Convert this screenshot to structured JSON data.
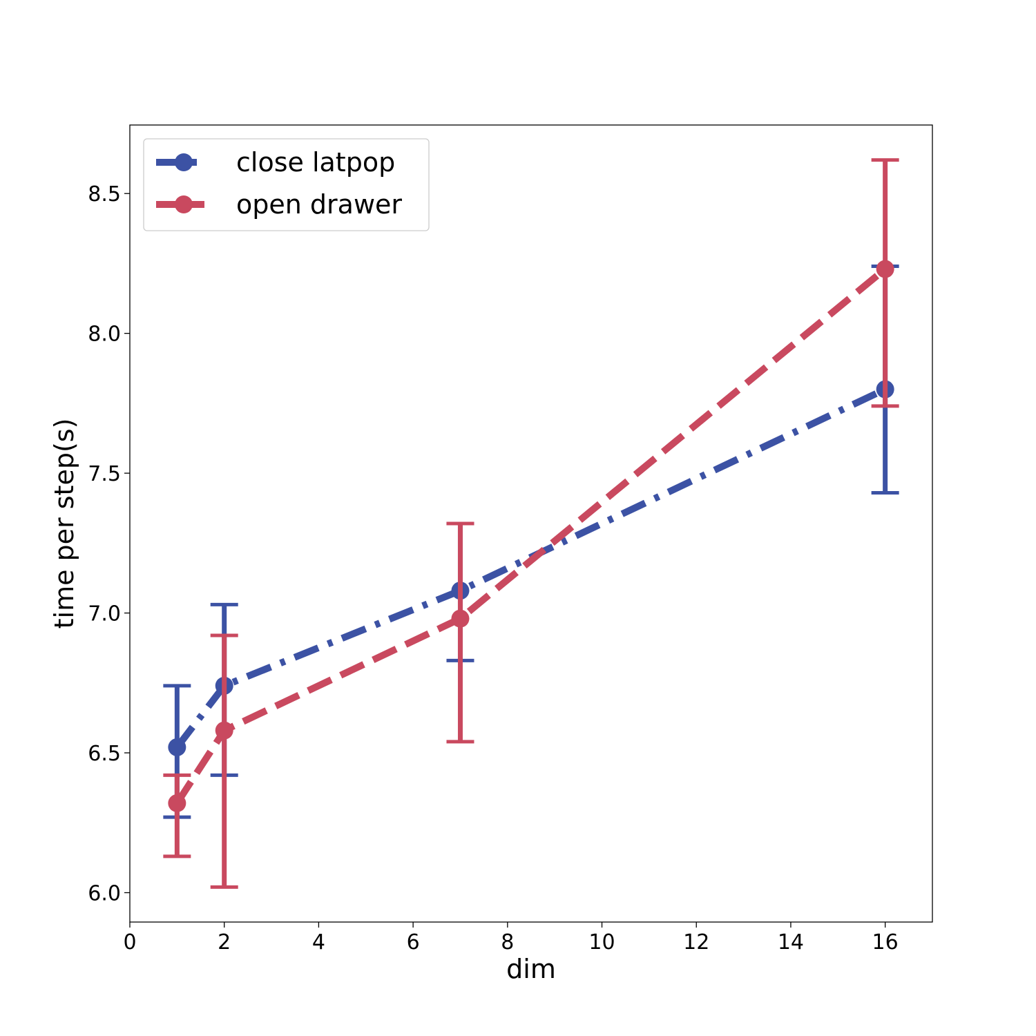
{
  "chart_data": {
    "type": "line",
    "xlabel": "dim",
    "ylabel": "time per step(s)",
    "xlim": [
      0,
      17
    ],
    "ylim": [
      5.895,
      8.745
    ],
    "xticks": [
      0,
      2,
      4,
      6,
      8,
      10,
      12,
      14,
      16
    ],
    "yticks": [
      6.0,
      6.5,
      7.0,
      7.5,
      8.0,
      8.5
    ],
    "grid": false,
    "legend_position": "top-left",
    "series": [
      {
        "name": "close latpop",
        "color": "#3c52a4",
        "line_style": "dash-dot",
        "x": [
          1,
          2,
          7,
          16
        ],
        "y": [
          6.52,
          6.74,
          7.08,
          7.8
        ],
        "err_lower": [
          6.27,
          6.42,
          6.83,
          7.43
        ],
        "err_upper": [
          6.74,
          7.03,
          7.32,
          8.24
        ]
      },
      {
        "name": "open drawer",
        "color": "#c9495f",
        "line_style": "dashed",
        "x": [
          1,
          2,
          7,
          16
        ],
        "y": [
          6.32,
          6.58,
          6.98,
          8.23
        ],
        "err_lower": [
          6.13,
          6.02,
          6.54,
          7.74
        ],
        "err_upper": [
          6.42,
          6.92,
          7.32,
          8.62
        ]
      }
    ]
  }
}
